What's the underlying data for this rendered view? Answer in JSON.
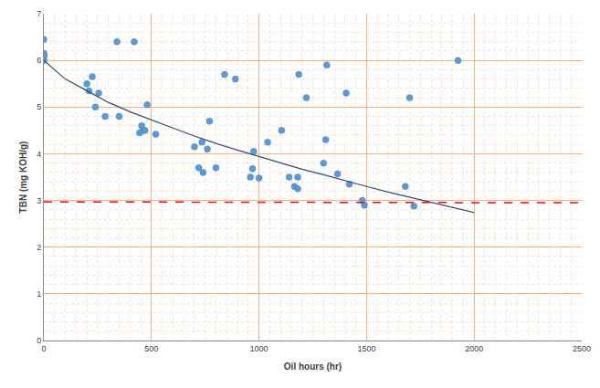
{
  "chart_data": {
    "type": "scatter",
    "x_label": "Oil hours (hr)",
    "y_label": "TBN (mg KOH/g)",
    "xlim": [
      0,
      2500
    ],
    "xticks": [
      0,
      500,
      1000,
      1500,
      2000,
      2500
    ],
    "ylim": [
      0,
      7
    ],
    "yticks": [
      0,
      1,
      2,
      3,
      4,
      5,
      6,
      7
    ],
    "grid": true,
    "series": [
      {
        "type": "scatter",
        "marker": "circle",
        "color": "#5b9bd5",
        "x": [
          0,
          0,
          0,
          0,
          0,
          0,
          225,
          200,
          210,
          255,
          240,
          285,
          340,
          350,
          420,
          455,
          460,
          445,
          480,
          470,
          520,
          700,
          720,
          740,
          735,
          760,
          770,
          800,
          840,
          890,
          960,
          970,
          975,
          1000,
          1040,
          1105,
          1140,
          1165,
          1180,
          1180,
          1185,
          1220,
          1300,
          1310,
          1315,
          1365,
          1405,
          1420,
          1480,
          1490,
          1680,
          1700,
          1720,
          1925
        ],
        "values": [
          6.45,
          6.15,
          6.1,
          6.05,
          6.0,
          6.12,
          5.65,
          5.5,
          5.35,
          5.3,
          5.0,
          4.8,
          6.4,
          4.8,
          6.4,
          4.6,
          4.5,
          4.45,
          5.05,
          4.5,
          4.42,
          4.15,
          3.7,
          3.6,
          4.25,
          4.1,
          4.7,
          3.7,
          5.7,
          5.6,
          3.5,
          3.68,
          4.05,
          3.48,
          4.25,
          4.5,
          3.5,
          3.3,
          3.25,
          3.5,
          5.7,
          5.2,
          3.8,
          4.3,
          5.9,
          3.57,
          5.3,
          3.35,
          3.0,
          2.9,
          3.3,
          5.2,
          2.88,
          6.0
        ]
      },
      {
        "type": "line",
        "line_style": "solid",
        "color": "#2e4a7a",
        "x": [
          0,
          100,
          200,
          300,
          400,
          500,
          600,
          700,
          800,
          900,
          1000,
          1100,
          1200,
          1300,
          1400,
          1500,
          1600,
          1700,
          1800,
          1900,
          2000
        ],
        "values": [
          6.0,
          5.6,
          5.35,
          5.1,
          4.9,
          4.72,
          4.55,
          4.38,
          4.22,
          4.08,
          3.94,
          3.8,
          3.67,
          3.55,
          3.42,
          3.3,
          3.18,
          3.07,
          2.96,
          2.85,
          2.74
        ]
      },
      {
        "type": "line",
        "line_style": "dash",
        "color": "#ff0000",
        "x": [
          0,
          2500
        ],
        "values": [
          2.97,
          2.95
        ]
      }
    ]
  }
}
